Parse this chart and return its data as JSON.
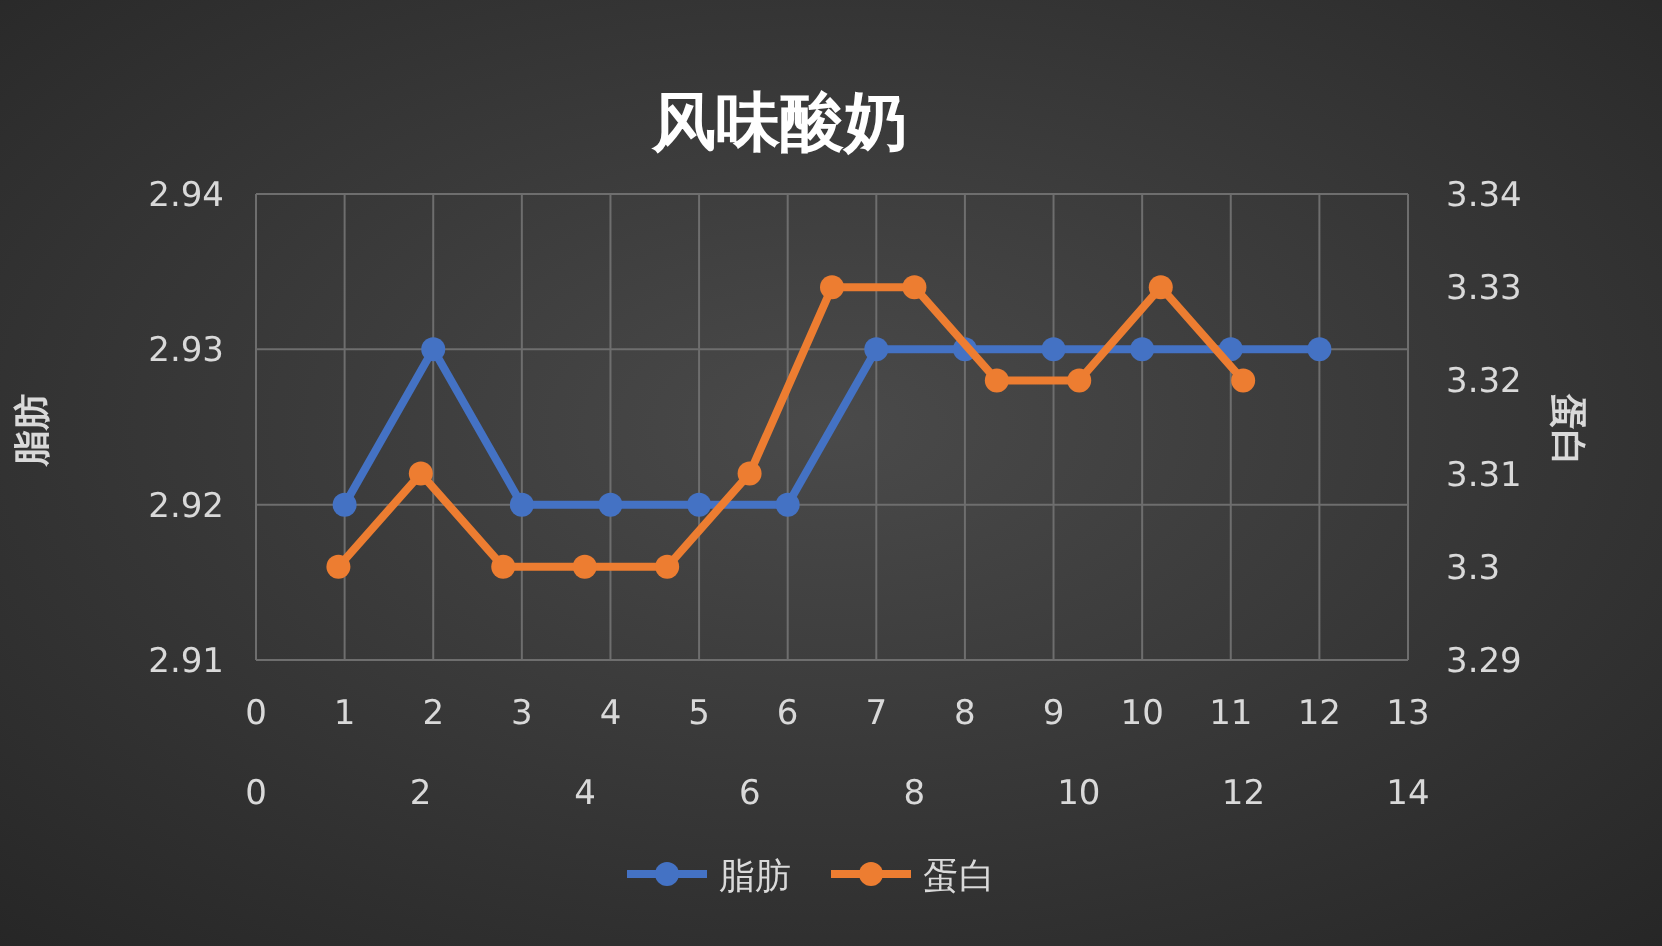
{
  "chart_data": {
    "type": "line",
    "title": "风味酸奶",
    "ylabel": "脂肪",
    "y2label": "蛋白",
    "xlim": [
      0,
      13
    ],
    "xticks": [
      0,
      1,
      2,
      3,
      4,
      5,
      6,
      7,
      8,
      9,
      10,
      11,
      12,
      13
    ],
    "x2lim": [
      0,
      14
    ],
    "x2ticks": [
      0,
      2,
      4,
      6,
      8,
      10,
      12,
      14
    ],
    "ylim": [
      2.91,
      2.94
    ],
    "yticks": [
      2.91,
      2.92,
      2.93,
      2.94
    ],
    "y2lim": [
      3.29,
      3.34
    ],
    "y2ticks": [
      3.29,
      3.3,
      3.31,
      3.32,
      3.33,
      3.34
    ],
    "grid": true,
    "legend": "bottom",
    "marker": "circle",
    "series": [
      {
        "name": "脂肪",
        "color": "#4472c4",
        "x": [
          1,
          2,
          3,
          4,
          5,
          6,
          7,
          8,
          9,
          10,
          11,
          12
        ],
        "values": [
          2.92,
          2.93,
          2.92,
          2.92,
          2.92,
          2.92,
          2.93,
          2.93,
          2.93,
          2.93,
          2.93,
          2.93
        ]
      },
      {
        "name": "蛋白",
        "color": "#ed7d31",
        "axis": "y2",
        "x": [
          0.93,
          1.86,
          2.79,
          3.71,
          4.64,
          5.57,
          6.5,
          7.43,
          8.36,
          9.29,
          10.21,
          11.14
        ],
        "values": [
          3.3,
          3.31,
          3.3,
          3.3,
          3.3,
          3.31,
          3.33,
          3.33,
          3.32,
          3.32,
          3.33,
          3.32
        ]
      }
    ]
  }
}
